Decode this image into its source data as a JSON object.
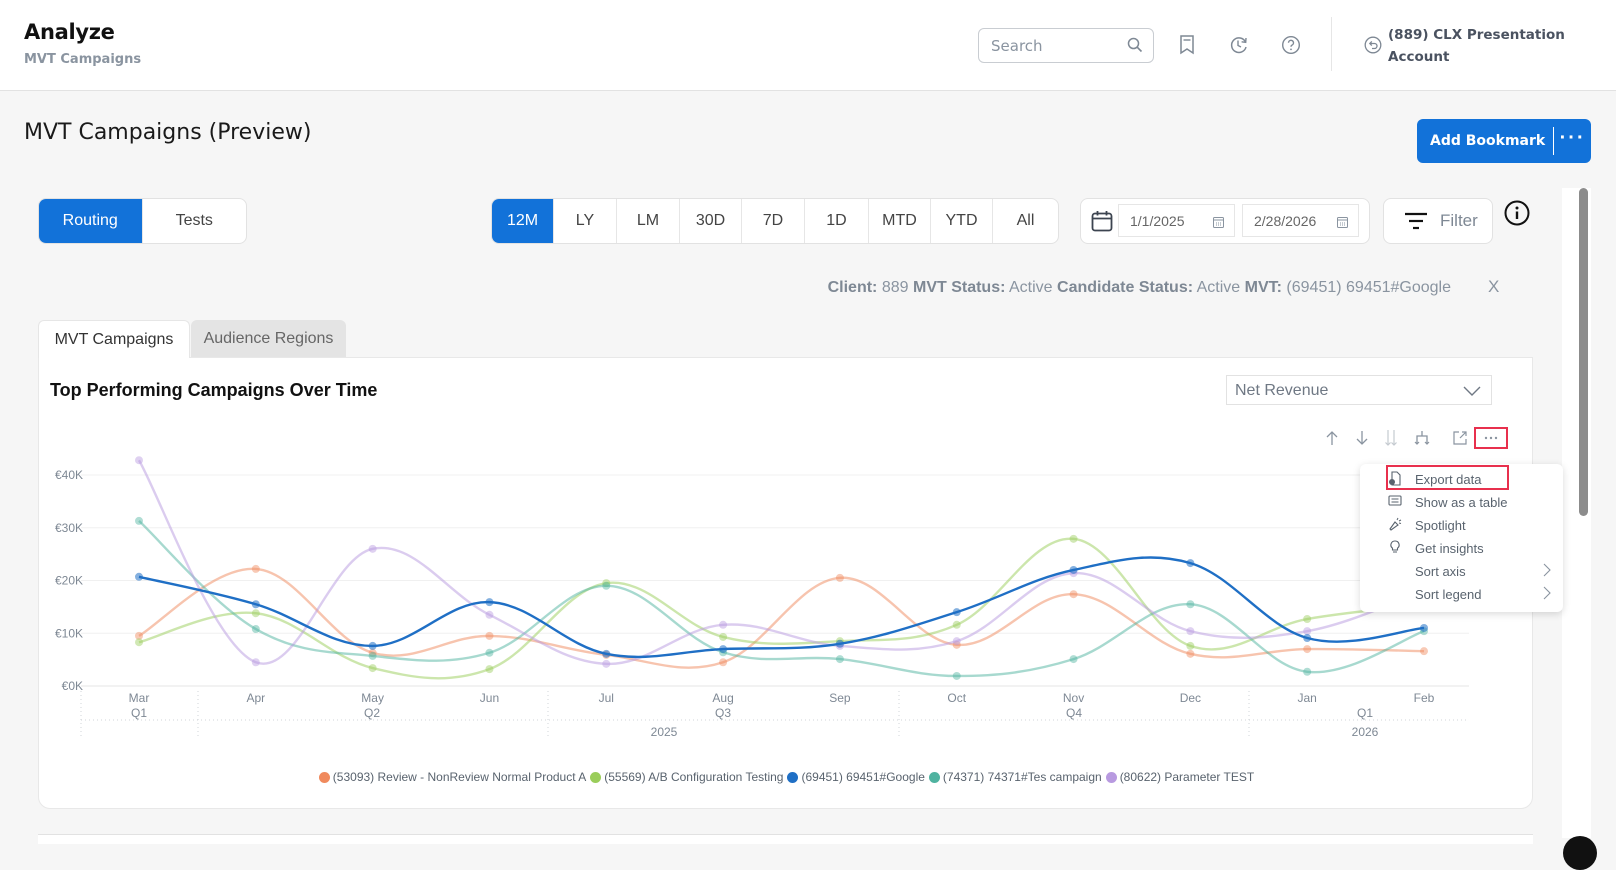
{
  "header": {
    "app_title": "Analyze",
    "app_subtitle": "MVT Campaigns",
    "search_placeholder": "Search",
    "account_name": "(889) CLX Presentation Account",
    "icons": [
      "search-icon",
      "bookmark-icon",
      "history-icon",
      "help-icon",
      "switch-account-icon"
    ]
  },
  "page": {
    "title": "MVT Campaigns (Preview)",
    "add_bookmark_label": "Add Bookmark",
    "more_label": "···"
  },
  "view_toggle": {
    "options": [
      "Routing",
      "Tests"
    ],
    "selected": "Routing"
  },
  "period": {
    "options": [
      "12M",
      "LY",
      "LM",
      "30D",
      "7D",
      "1D",
      "MTD",
      "YTD",
      "All"
    ],
    "selected": "12M"
  },
  "date_range": {
    "start": "1/1/2025",
    "end": "2/28/2026"
  },
  "filter_label": "Filter",
  "filter_summary": {
    "client_label": "Client:",
    "client_value": "889",
    "mvt_status_label": "MVT Status:",
    "mvt_status_value": "Active",
    "candidate_status_label": "Candidate Status:",
    "candidate_status_value": "Active",
    "mvt_label": "MVT:",
    "mvt_value": "(69451) 69451#Google",
    "clear_label": "X"
  },
  "tabs": [
    {
      "label": "MVT Campaigns",
      "active": true
    },
    {
      "label": "Audience Regions",
      "active": false
    }
  ],
  "chart_card": {
    "title": "Top Performing Campaigns Over Time",
    "metric_select": "Net Revenue",
    "controls": [
      "sort-ascending-icon",
      "sort-descending-icon",
      "drill-down-icon",
      "expand-hierarchy-icon",
      "focus-mode-icon",
      "more-options-icon"
    ]
  },
  "context_menu": {
    "items": [
      {
        "label": "Export data",
        "icon": "export-icon",
        "submenu": false,
        "highlighted": true
      },
      {
        "label": "Show as a table",
        "icon": "table-icon",
        "submenu": false
      },
      {
        "label": "Spotlight",
        "icon": "spotlight-icon",
        "submenu": false
      },
      {
        "label": "Get insights",
        "icon": "lightbulb-icon",
        "submenu": false
      },
      {
        "label": "Sort axis",
        "icon": "",
        "submenu": true
      },
      {
        "label": "Sort legend",
        "icon": "",
        "submenu": true
      }
    ]
  },
  "colors": {
    "accent": "#1272d9",
    "highlight_border": "#e8304d",
    "series": [
      "#f08a5d",
      "#9acd5a",
      "#1f6fc5",
      "#4fb3a0",
      "#b89ae0"
    ]
  },
  "chart_data": {
    "type": "line",
    "title": "Top Performing Campaigns Over Time",
    "xlabel": "",
    "ylabel": "Net Revenue",
    "categories": [
      "Mar",
      "Apr",
      "May",
      "Jun",
      "Jul",
      "Aug",
      "Sep",
      "Oct",
      "Nov",
      "Dec",
      "Jan",
      "Feb"
    ],
    "quarter_labels": [
      {
        "at": "Mar",
        "label": "Q1"
      },
      {
        "at": "May",
        "label": "Q2"
      },
      {
        "at": "Aug",
        "label": "Q3"
      },
      {
        "at": "Nov",
        "label": "Q4"
      },
      {
        "at": "Jan-Feb",
        "label": "Q1"
      }
    ],
    "year_labels": [
      {
        "label": "2025",
        "span": "Mar-Dec"
      },
      {
        "label": "2026",
        "span": "Jan-Feb"
      }
    ],
    "y_ticks": [
      "€0K",
      "€10K",
      "€20K",
      "€30K",
      "€40K"
    ],
    "ylim": [
      0,
      43000
    ],
    "grid": true,
    "legend_position": "bottom",
    "series": [
      {
        "name": "(53093) Review - NonReview Normal Product A",
        "color": "#f08a5d",
        "values": [
          9500,
          22200,
          6300,
          9500,
          5900,
          4500,
          20500,
          7800,
          17400,
          6100,
          7000,
          6600
        ]
      },
      {
        "name": "(55569) A/B Configuration Testing",
        "color": "#9acd5a",
        "values": [
          8300,
          13800,
          3400,
          3200,
          19500,
          9300,
          8500,
          11600,
          27900,
          7600,
          12700,
          15400
        ]
      },
      {
        "name": "(69451) 69451#Google",
        "color": "#1f6fc5",
        "values": [
          20700,
          15500,
          7600,
          15900,
          6100,
          7000,
          8000,
          14000,
          22000,
          23300,
          9100,
          11000
        ]
      },
      {
        "name": "(74371) 74371#Tes campaign",
        "color": "#4fb3a0",
        "values": [
          31300,
          10800,
          5700,
          6300,
          19000,
          6400,
          5100,
          1900,
          5100,
          15500,
          2700,
          10400
        ]
      },
      {
        "name": "(80622) Parameter TEST",
        "color": "#b89ae0",
        "values": [
          42800,
          4500,
          26000,
          13500,
          4200,
          11600,
          7600,
          8500,
          21400,
          10400,
          10400,
          18000
        ]
      }
    ]
  }
}
